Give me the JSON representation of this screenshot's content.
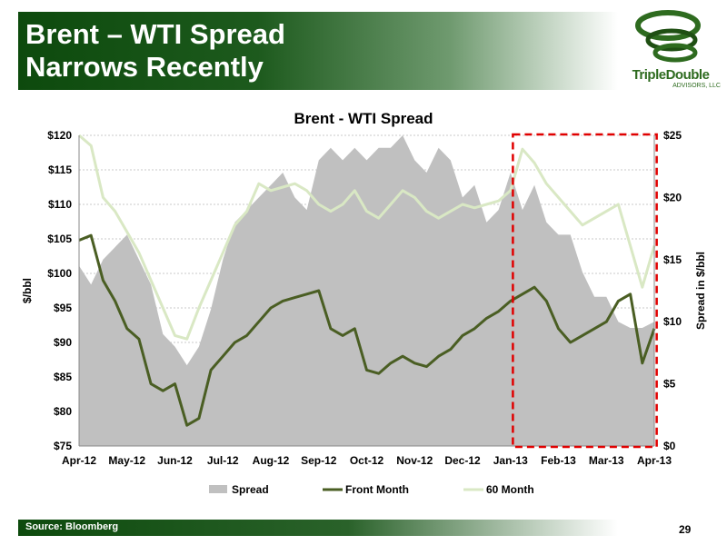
{
  "slide": {
    "title_line1": "Brent – WTI Spread",
    "title_line2": "Narrows Recently",
    "logo_name": "TripleDouble",
    "logo_sub": "ADVISORS, LLC",
    "source": "Source: Bloomberg",
    "page_number": "29"
  },
  "colors": {
    "spread": "#c0c0c0",
    "front_month": "#4a5e23",
    "sixty_month": "#d9e8c4",
    "highlight": "#e00000",
    "header_green": "#0d4a0d"
  },
  "chart_data": {
    "type": "line",
    "title": "Brent - WTI Spread",
    "ylabel": "$/bbl",
    "y2label": "Spread in $/bbl",
    "ylim": [
      75,
      120
    ],
    "y2lim": [
      0,
      25
    ],
    "yticks": [
      "$75",
      "$80",
      "$85",
      "$90",
      "$95",
      "$100",
      "$105",
      "$110",
      "$115",
      "$120"
    ],
    "y2ticks": [
      "$0",
      "$5",
      "$10",
      "$15",
      "$20",
      "$25"
    ],
    "xticks": [
      "Apr-12",
      "May-12",
      "Jun-12",
      "Jul-12",
      "Aug-12",
      "Sep-12",
      "Oct-12",
      "Nov-12",
      "Dec-12",
      "Jan-13",
      "Feb-13",
      "Mar-13",
      "Apr-13"
    ],
    "grid": "horizontal",
    "legend_position": "bottom",
    "highlight_range": [
      9.05,
      12.05
    ],
    "series": [
      {
        "name": "Spread",
        "type": "area",
        "axis": "right",
        "x": [
          0,
          0.25,
          0.5,
          0.75,
          1,
          1.25,
          1.5,
          1.75,
          2,
          2.25,
          2.5,
          2.75,
          3,
          3.25,
          3.5,
          3.75,
          4,
          4.25,
          4.5,
          4.75,
          5,
          5.25,
          5.5,
          5.75,
          6,
          6.25,
          6.5,
          6.75,
          7,
          7.25,
          7.5,
          7.75,
          8,
          8.25,
          8.5,
          8.75,
          9,
          9.25,
          9.5,
          9.75,
          10,
          10.25,
          10.5,
          10.75,
          11,
          11.25,
          11.5,
          11.75,
          12
        ],
        "values": [
          14.5,
          13,
          15,
          16,
          17,
          15,
          13,
          9,
          8,
          6.5,
          8,
          11,
          15,
          18,
          19,
          20,
          21,
          22,
          20,
          19,
          23,
          24,
          23,
          24,
          23,
          24,
          24,
          25,
          23,
          22,
          24,
          23,
          20,
          21,
          18,
          19,
          22,
          19,
          21,
          18,
          17,
          17,
          14,
          12,
          12,
          10,
          9.5,
          9.5,
          10
        ]
      },
      {
        "name": "Front Month",
        "axis": "left",
        "x": [
          0,
          0.25,
          0.5,
          0.75,
          1,
          1.25,
          1.5,
          1.75,
          2,
          2.25,
          2.5,
          2.75,
          3,
          3.25,
          3.5,
          3.75,
          4,
          4.25,
          4.5,
          4.75,
          5,
          5.25,
          5.5,
          5.75,
          6,
          6.25,
          6.5,
          6.75,
          7,
          7.25,
          7.5,
          7.75,
          8,
          8.25,
          8.5,
          8.75,
          9,
          9.25,
          9.5,
          9.75,
          10,
          10.25,
          10.5,
          10.75,
          11,
          11.25,
          11.5,
          11.75,
          12
        ],
        "values": [
          104.8,
          105.5,
          99,
          96,
          92,
          90.5,
          84,
          83,
          84,
          78,
          79,
          86,
          88,
          90,
          91,
          93,
          95,
          96,
          96.5,
          97,
          97.5,
          92,
          91,
          92,
          86,
          85.5,
          87,
          88,
          87,
          86.5,
          88,
          89,
          91,
          92,
          93.5,
          94.5,
          96,
          97,
          98,
          96,
          92,
          90,
          91,
          92,
          93,
          96,
          97,
          87,
          92
        ]
      },
      {
        "name": "60 Month",
        "axis": "left",
        "x": [
          0,
          0.25,
          0.5,
          0.75,
          1,
          1.25,
          1.5,
          1.75,
          2,
          2.25,
          2.5,
          2.75,
          3,
          3.25,
          3.5,
          3.75,
          4,
          4.25,
          4.5,
          4.75,
          5,
          5.25,
          5.5,
          5.75,
          6,
          6.25,
          6.5,
          6.75,
          7,
          7.25,
          7.5,
          7.75,
          8,
          8.25,
          8.5,
          8.75,
          9,
          9.25,
          9.5,
          9.75,
          10,
          10.25,
          10.5,
          10.75,
          11,
          11.25,
          11.5,
          11.75,
          12
        ],
        "values": [
          120,
          118.5,
          111,
          109,
          106,
          103,
          99,
          95,
          91,
          90.5,
          95,
          99,
          103,
          107,
          109,
          113,
          112,
          112.5,
          113,
          112,
          110,
          109,
          110,
          112,
          109,
          108,
          110,
          112,
          111,
          109,
          108,
          109,
          110,
          109.5,
          110,
          110.5,
          112,
          118,
          116,
          113,
          111,
          109,
          107,
          108,
          109,
          110,
          104,
          98,
          104
        ]
      }
    ]
  }
}
